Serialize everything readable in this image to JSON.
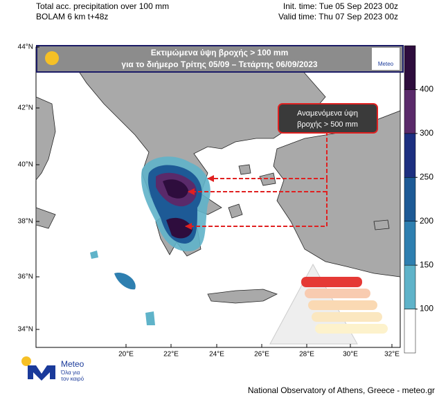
{
  "header": {
    "title": "Total acc. precipitation over 100 mm",
    "model": "BOLAM 6 km t+48z",
    "init_time": "Init. time: Tue 05 Sep 2023 00z",
    "valid_time": "Valid time: Thu 07 Sep 2023 00z"
  },
  "banner": {
    "line1": "Εκτιμώμενα ύψη βροχής > 100 mm",
    "line2": "για το διήμερο Τρίτης 05/09 – Τετάρτης 06/09/2023"
  },
  "callout": {
    "line1": "Αναμενόμενα ύψη",
    "line2": "βροχής > 500 mm"
  },
  "map": {
    "lat_labels": [
      "44°N",
      "42°N",
      "40°N",
      "38°N",
      "36°N",
      "34°N"
    ],
    "lon_labels": [
      "20°E",
      "22°E",
      "24°E",
      "26°E",
      "28°E",
      "30°E",
      "32°E"
    ]
  },
  "colorbar": {
    "ticks": [
      100,
      150,
      200,
      250,
      300,
      400
    ],
    "colors": [
      "#ffffff",
      "#5fb3c9",
      "#2e7fb0",
      "#1d5a96",
      "#1c2f80",
      "#5a2a6a",
      "#2e0d3d"
    ]
  },
  "logo": {
    "name": "Meteo",
    "tagline1": "Όλα για",
    "tagline2": "τον καιρό",
    "banner_logo": "Meteo"
  },
  "footer": "National Observatory of Athens, Greece - meteo.gr"
}
